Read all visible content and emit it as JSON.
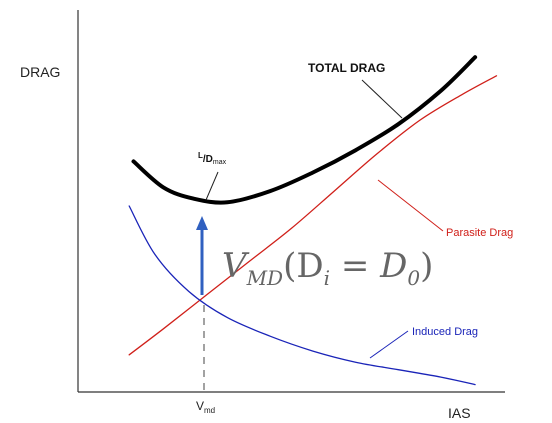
{
  "chart_data": {
    "type": "line",
    "ylabel": "DRAG",
    "xlabel": "IAS",
    "x_tick": "V",
    "x_tick_sub": "md",
    "series": [
      {
        "name": "TOTAL DRAG",
        "color": "#000000",
        "x": [
          0.13,
          0.2,
          0.27,
          0.35,
          0.45,
          0.55,
          0.65,
          0.75,
          0.85,
          0.93
        ],
        "y": [
          0.62,
          0.55,
          0.52,
          0.51,
          0.54,
          0.59,
          0.65,
          0.72,
          0.81,
          0.9
        ]
      },
      {
        "name": "Parasite Drag",
        "color": "#d0201a",
        "x": [
          0.12,
          0.2,
          0.3,
          0.4,
          0.5,
          0.6,
          0.7,
          0.8,
          0.9,
          0.98
        ],
        "y": [
          0.1,
          0.17,
          0.26,
          0.35,
          0.44,
          0.54,
          0.64,
          0.73,
          0.8,
          0.85
        ]
      },
      {
        "name": "Induced Drag",
        "color": "#1a24b8",
        "x": [
          0.12,
          0.18,
          0.26,
          0.35,
          0.45,
          0.55,
          0.65,
          0.75,
          0.85,
          0.93
        ],
        "y": [
          0.5,
          0.37,
          0.27,
          0.2,
          0.15,
          0.11,
          0.08,
          0.06,
          0.04,
          0.02
        ]
      }
    ],
    "annotations": {
      "ld_num": "L",
      "ld_den": "D",
      "ld_sub": "max",
      "formula_prefix": "V",
      "formula_sub": "MD",
      "formula_open": "(D",
      "formula_i": "i",
      "formula_eq": " = D",
      "formula_zero": "0",
      "formula_close": ")"
    },
    "colors": {
      "arrow": "#3060c0",
      "axis": "#333333"
    },
    "grid": false
  }
}
